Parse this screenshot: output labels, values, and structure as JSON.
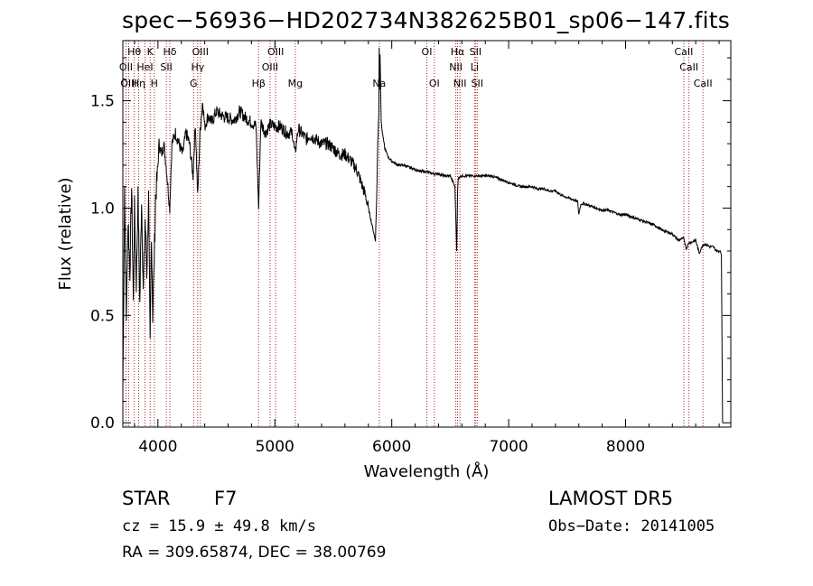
{
  "title": "spec−56936−HD202734N382625B01_sp06−147.fits",
  "info": {
    "object_type": "STAR",
    "subclass": "F7",
    "survey": "LAMOST DR5",
    "redshift": "cz = 15.9 ± 49.8 km/s",
    "obs_date": "Obs−Date: 20141005",
    "coords": "RA = 309.65874, DEC =  38.00769"
  },
  "chart_data": {
    "type": "line",
    "xlabel": "Wavelength (Å)",
    "ylabel": "Flux (relative)",
    "xlim": [
      3700,
      8900
    ],
    "ylim": [
      -0.02,
      1.78
    ],
    "xticks": [
      4000,
      5000,
      6000,
      7000,
      8000
    ],
    "yticks": [
      0.0,
      0.5,
      1.0,
      1.5
    ],
    "yticklabels": [
      "0.0",
      "0.5",
      "1.0",
      "1.5"
    ],
    "line_color": "#000000",
    "marker_color": "#aa2222",
    "spectrum": {
      "x": [
        3700,
        3715,
        3730,
        3745,
        3760,
        3775,
        3790,
        3800,
        3815,
        3830,
        3845,
        3860,
        3875,
        3890,
        3905,
        3920,
        3933,
        3945,
        3955,
        3968,
        3980,
        3995,
        4010,
        4030,
        4050,
        4070,
        4101,
        4120,
        4150,
        4180,
        4210,
        4240,
        4270,
        4300,
        4320,
        4340,
        4360,
        4383,
        4400,
        4430,
        4460,
        4500,
        4550,
        4600,
        4650,
        4700,
        4750,
        4800,
        4840,
        4861,
        4880,
        4920,
        4960,
        5000,
        5050,
        5100,
        5150,
        5172,
        5200,
        5270,
        5300,
        5350,
        5400,
        5450,
        5500,
        5550,
        5600,
        5650,
        5700,
        5750,
        5780,
        5800,
        5820,
        5840,
        5860,
        5870,
        5880,
        5890,
        5893,
        5896,
        5900,
        5905,
        5910,
        5920,
        5940,
        5960,
        5980,
        6000,
        6050,
        6100,
        6150,
        6200,
        6250,
        6300,
        6350,
        6400,
        6450,
        6500,
        6540,
        6556,
        6563,
        6570,
        6590,
        6650,
        6700,
        6750,
        6800,
        6850,
        6900,
        6950,
        7000,
        7050,
        7100,
        7150,
        7200,
        7250,
        7300,
        7350,
        7400,
        7450,
        7500,
        7550,
        7590,
        7600,
        7610,
        7620,
        7650,
        7700,
        7750,
        7800,
        7850,
        7900,
        7950,
        8000,
        8050,
        8100,
        8150,
        8200,
        8250,
        8300,
        8350,
        8400,
        8450,
        8498,
        8520,
        8542,
        8560,
        8600,
        8630,
        8662,
        8690,
        8720,
        8750,
        8780,
        8800,
        8810
      ],
      "y": [
        0.15,
        1.1,
        0.5,
        0.95,
        0.7,
        1.1,
        0.55,
        1.0,
        0.65,
        1.05,
        0.55,
        1.05,
        0.6,
        0.95,
        0.7,
        1.05,
        0.35,
        0.9,
        0.5,
        0.75,
        1.05,
        1.15,
        1.3,
        1.25,
        1.3,
        1.2,
        1.0,
        1.3,
        1.35,
        1.3,
        1.25,
        1.35,
        1.3,
        1.15,
        1.4,
        1.05,
        1.35,
        1.5,
        1.38,
        1.43,
        1.4,
        1.45,
        1.43,
        1.42,
        1.41,
        1.45,
        1.42,
        1.4,
        1.38,
        1.0,
        1.4,
        1.35,
        1.39,
        1.38,
        1.38,
        1.35,
        1.35,
        1.25,
        1.37,
        1.32,
        1.34,
        1.32,
        1.3,
        1.3,
        1.28,
        1.25,
        1.25,
        1.22,
        1.18,
        1.1,
        1.05,
        1.0,
        0.95,
        0.9,
        0.85,
        1.02,
        1.3,
        1.45,
        1.75,
        1.55,
        1.72,
        1.55,
        1.4,
        1.35,
        1.28,
        1.25,
        1.23,
        1.22,
        1.2,
        1.2,
        1.19,
        1.18,
        1.17,
        1.17,
        1.16,
        1.16,
        1.15,
        1.15,
        1.1,
        0.8,
        1.08,
        1.14,
        1.15,
        1.15,
        1.15,
        1.15,
        1.15,
        1.15,
        1.14,
        1.13,
        1.12,
        1.11,
        1.1,
        1.1,
        1.1,
        1.09,
        1.09,
        1.08,
        1.08,
        1.06,
        1.05,
        1.04,
        1.03,
        0.97,
        1.0,
        1.02,
        1.02,
        1.01,
        1.0,
        0.99,
        0.99,
        0.98,
        0.97,
        0.97,
        0.96,
        0.95,
        0.94,
        0.93,
        0.92,
        0.9,
        0.89,
        0.88,
        0.85,
        0.86,
        0.81,
        0.84,
        0.84,
        0.85,
        0.79,
        0.83,
        0.83,
        0.82,
        0.82,
        0.8,
        0.8,
        0.8
      ]
    },
    "lines": [
      {
        "label": "Hθ",
        "wl": 3798,
        "row": 1
      },
      {
        "label": "K",
        "wl": 3934,
        "row": 1
      },
      {
        "label": "Hδ",
        "wl": 4102,
        "row": 1
      },
      {
        "label": "OIII",
        "wl": 4363,
        "row": 1
      },
      {
        "label": "OIII",
        "wl": 5007,
        "row": 1
      },
      {
        "label": "Na",
        "wl": 5893,
        "row": 3
      },
      {
        "label": "OI",
        "wl": 6300,
        "row": 1
      },
      {
        "label": "Hα",
        "wl": 6563,
        "row": 1
      },
      {
        "label": "SII",
        "wl": 6716,
        "row": 1
      },
      {
        "label": "CaII",
        "wl": 8498,
        "row": 1
      },
      {
        "label": "OII",
        "wl": 3727,
        "row": 2
      },
      {
        "label": "HeI",
        "wl": 3889,
        "row": 2
      },
      {
        "label": "SII",
        "wl": 4072,
        "row": 2
      },
      {
        "label": "Hγ",
        "wl": 4340,
        "row": 2
      },
      {
        "label": "OIII",
        "wl": 4959,
        "row": 2
      },
      {
        "label": "NII",
        "wl": 6548,
        "row": 2
      },
      {
        "label": "Li",
        "wl": 6708,
        "row": 2
      },
      {
        "label": "CaII",
        "wl": 8542,
        "row": 2
      },
      {
        "label": "OIII",
        "wl": 3750,
        "row": 3
      },
      {
        "label": "Hη",
        "wl": 3835,
        "row": 3
      },
      {
        "label": "H",
        "wl": 3969,
        "row": 3
      },
      {
        "label": "G",
        "wl": 4305,
        "row": 3
      },
      {
        "label": "Hβ",
        "wl": 4861,
        "row": 3
      },
      {
        "label": "Mg",
        "wl": 5175,
        "row": 3
      },
      {
        "label": "OI",
        "wl": 6364,
        "row": 3
      },
      {
        "label": "NII",
        "wl": 6583,
        "row": 3
      },
      {
        "label": "SII",
        "wl": 6731,
        "row": 3
      },
      {
        "label": "CaII",
        "wl": 8662,
        "row": 3
      }
    ]
  }
}
